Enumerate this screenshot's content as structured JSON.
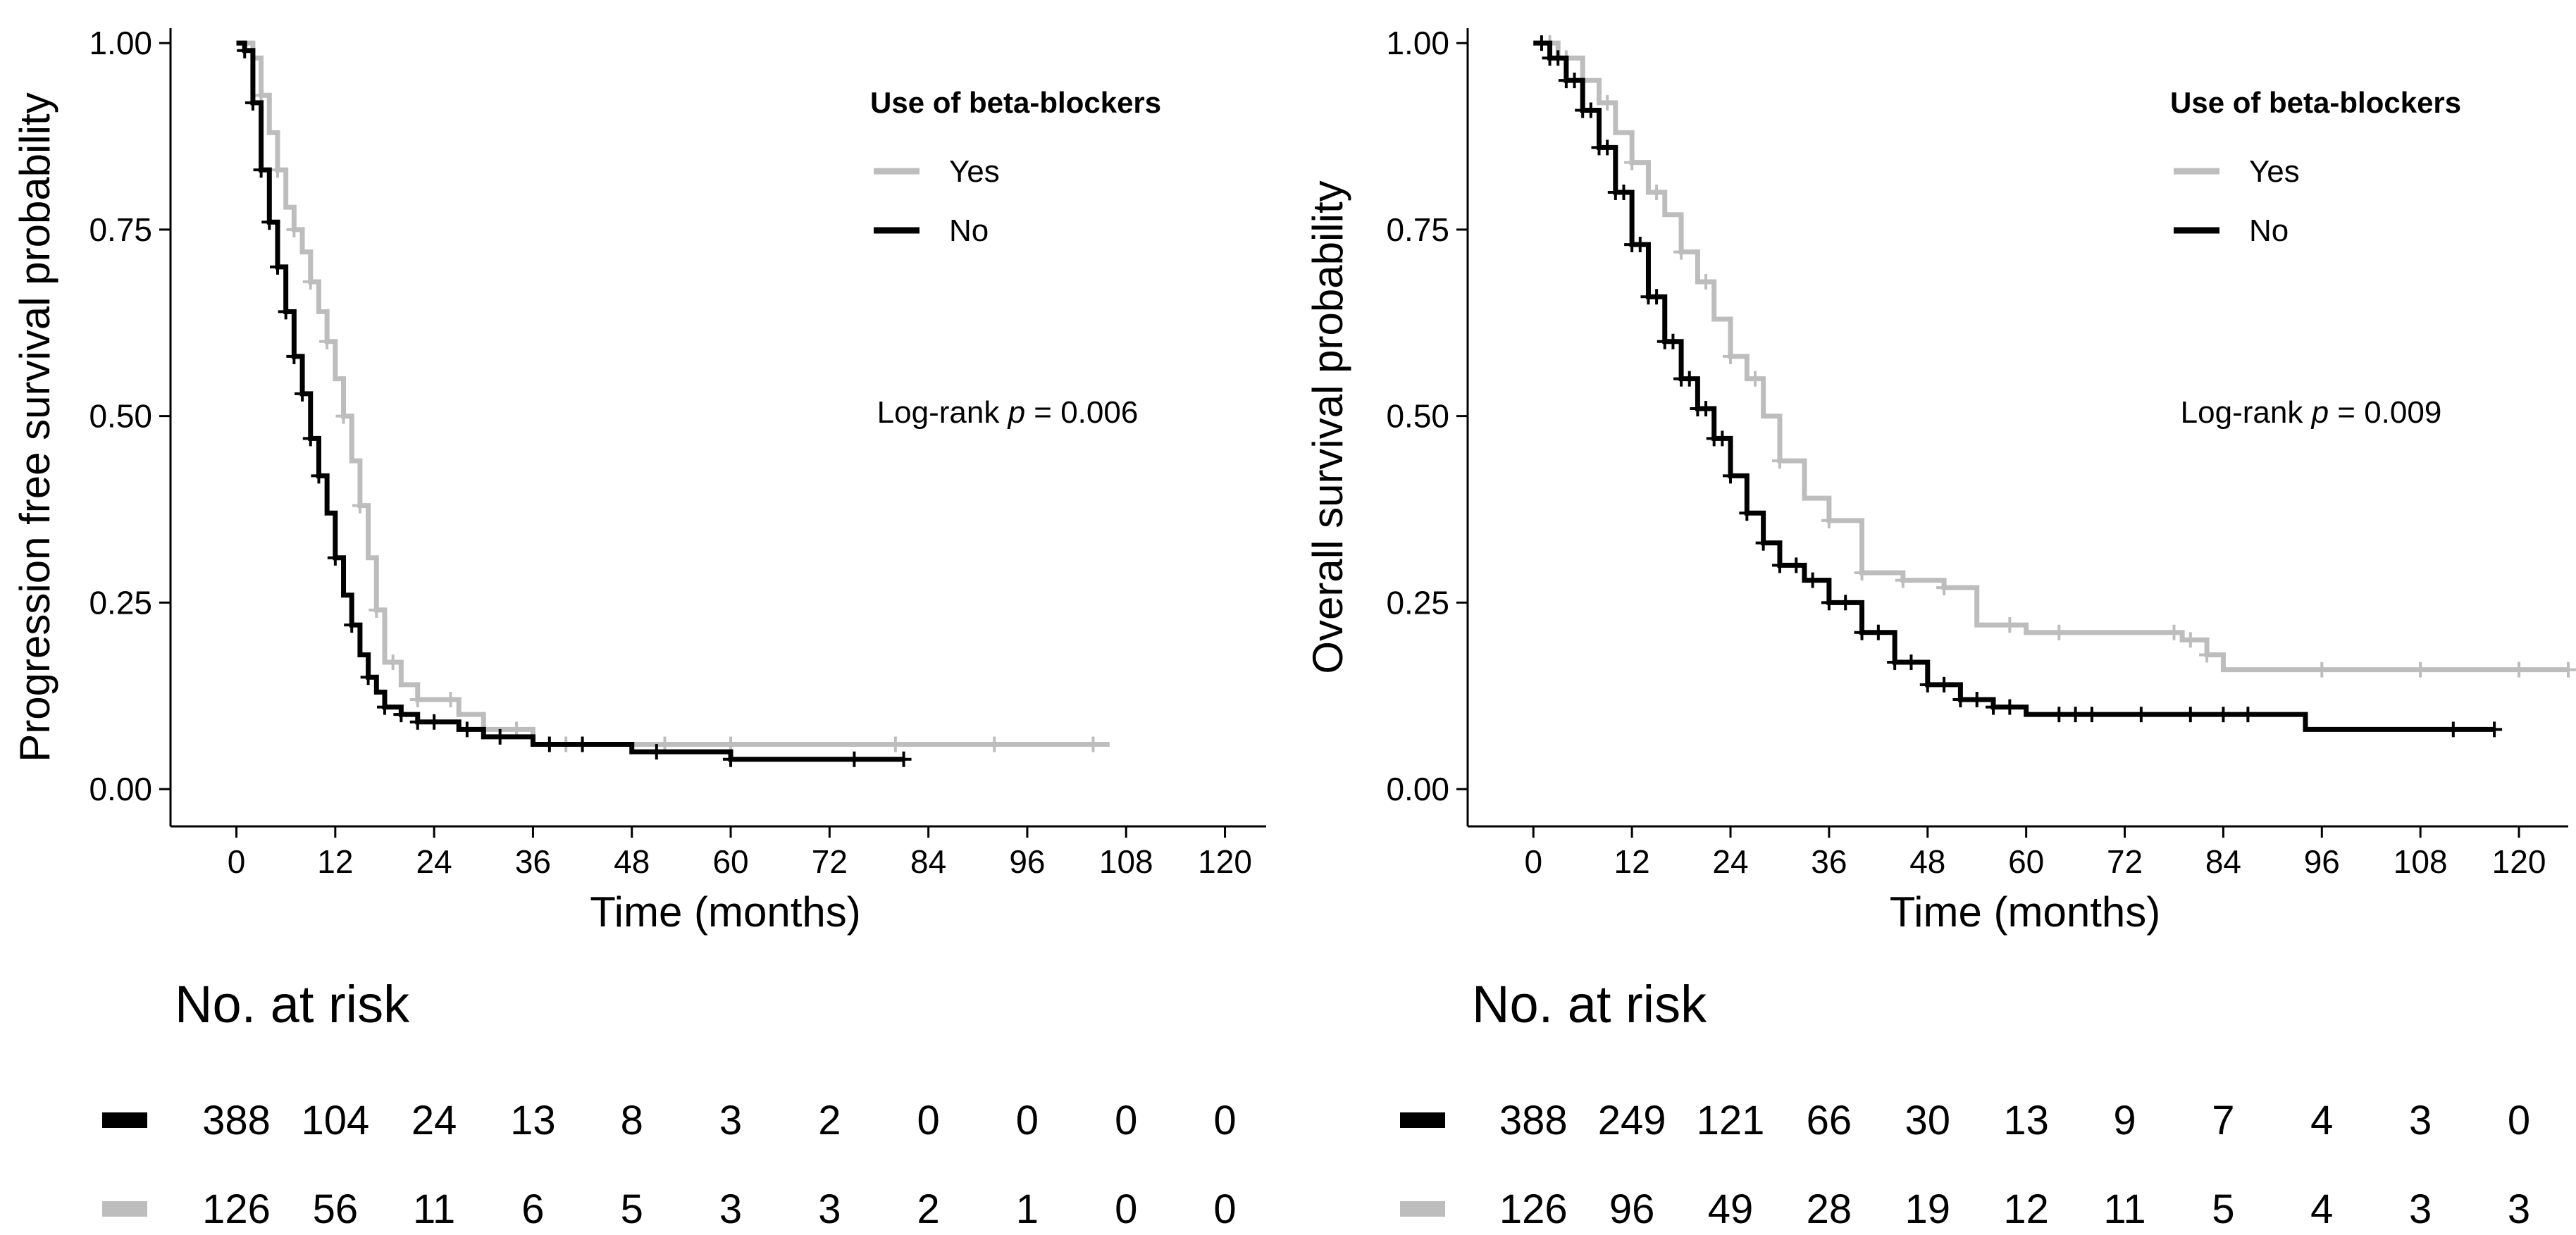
{
  "colors": {
    "yes": "#bdbdbd",
    "no": "#000000",
    "axis": "#000000",
    "background": "#ffffff"
  },
  "chart_data": [
    {
      "type": "line",
      "subtype": "kaplan-meier",
      "xlabel": "Time (months)",
      "ylabel": "Progression free survival probability",
      "xlim": [
        -8,
        125
      ],
      "ylim": [
        -0.05,
        1.02
      ],
      "xticks": [
        0,
        12,
        24,
        36,
        48,
        60,
        72,
        84,
        96,
        108,
        120
      ],
      "yticks": [
        0.0,
        0.25,
        0.5,
        0.75,
        1.0
      ],
      "ytick_labels": [
        "0.00",
        "0.25",
        "0.50",
        "0.75",
        "1.00"
      ],
      "legend": {
        "title": "Use of beta-blockers",
        "entries": [
          "Yes",
          "No"
        ],
        "position": "top-right"
      },
      "annotation": {
        "prefix": "Log-rank ",
        "italic": "p",
        "suffix": " = 0.006"
      },
      "series": [
        {
          "name": "Yes",
          "color": "#bdbdbd",
          "x": [
            0,
            2,
            3,
            4,
            5,
            6,
            7,
            8,
            9,
            10,
            11,
            12,
            13,
            14,
            15,
            16,
            17,
            18,
            20,
            22,
            24,
            27,
            30,
            36,
            48,
            60,
            72,
            84,
            96,
            106
          ],
          "y": [
            1.0,
            0.98,
            0.93,
            0.88,
            0.83,
            0.78,
            0.75,
            0.72,
            0.68,
            0.64,
            0.6,
            0.55,
            0.5,
            0.44,
            0.38,
            0.31,
            0.24,
            0.17,
            0.14,
            0.12,
            0.12,
            0.1,
            0.08,
            0.06,
            0.06,
            0.06,
            0.06,
            0.06,
            0.06,
            0.06
          ],
          "censor_x": [
            3,
            5,
            7,
            9,
            11,
            13,
            15,
            17,
            19,
            22,
            26,
            34,
            40,
            52,
            60,
            80,
            92,
            104
          ]
        },
        {
          "name": "No",
          "color": "#000000",
          "x": [
            0,
            1,
            2,
            3,
            4,
            5,
            6,
            7,
            8,
            9,
            10,
            11,
            12,
            13,
            14,
            15,
            16,
            17,
            18,
            20,
            22,
            24,
            27,
            30,
            36,
            42,
            48,
            60,
            70,
            81
          ],
          "y": [
            1.0,
            0.99,
            0.92,
            0.83,
            0.76,
            0.7,
            0.64,
            0.58,
            0.53,
            0.47,
            0.42,
            0.37,
            0.31,
            0.26,
            0.22,
            0.18,
            0.15,
            0.13,
            0.11,
            0.1,
            0.09,
            0.09,
            0.08,
            0.07,
            0.06,
            0.06,
            0.05,
            0.04,
            0.04,
            0.04
          ],
          "censor_x": [
            1,
            2,
            3,
            4,
            5,
            6,
            7,
            8,
            9,
            10,
            12,
            14,
            16,
            18,
            20,
            22,
            24,
            28,
            32,
            38,
            42,
            51,
            60,
            75,
            81
          ]
        }
      ],
      "risk_table": {
        "title": "No. at risk",
        "times": [
          0,
          12,
          24,
          36,
          48,
          60,
          72,
          84,
          96,
          108,
          120
        ],
        "rows": [
          {
            "group": "No",
            "color": "#000000",
            "values": [
              388,
              104,
              24,
              13,
              8,
              3,
              2,
              0,
              0,
              0,
              0
            ]
          },
          {
            "group": "Yes",
            "color": "#bdbdbd",
            "values": [
              126,
              56,
              11,
              6,
              5,
              3,
              3,
              2,
              1,
              0,
              0
            ]
          }
        ]
      }
    },
    {
      "type": "line",
      "subtype": "kaplan-meier",
      "xlabel": "Time (months)",
      "ylabel": "Overall survival probability",
      "xlim": [
        -8,
        126
      ],
      "ylim": [
        -0.05,
        1.02
      ],
      "xticks": [
        0,
        12,
        24,
        36,
        48,
        60,
        72,
        84,
        96,
        108,
        120
      ],
      "yticks": [
        0.0,
        0.25,
        0.5,
        0.75,
        1.0
      ],
      "ytick_labels": [
        "0.00",
        "0.25",
        "0.50",
        "0.75",
        "1.00"
      ],
      "legend": {
        "title": "Use of beta-blockers",
        "entries": [
          "Yes",
          "No"
        ],
        "position": "top-right"
      },
      "annotation": {
        "prefix": "Log-rank ",
        "italic": "p",
        "suffix": " = 0.009"
      },
      "series": [
        {
          "name": "Yes",
          "color": "#bdbdbd",
          "x": [
            0,
            3,
            6,
            8,
            10,
            12,
            14,
            16,
            18,
            20,
            22,
            24,
            26,
            28,
            30,
            33,
            36,
            40,
            45,
            50,
            54,
            60,
            72,
            79,
            82,
            84,
            96,
            108,
            120,
            126
          ],
          "y": [
            1.0,
            0.98,
            0.95,
            0.92,
            0.88,
            0.84,
            0.8,
            0.77,
            0.72,
            0.68,
            0.63,
            0.58,
            0.55,
            0.5,
            0.44,
            0.39,
            0.36,
            0.29,
            0.28,
            0.27,
            0.22,
            0.21,
            0.21,
            0.2,
            0.18,
            0.16,
            0.16,
            0.16,
            0.16,
            0.16
          ],
          "censor_x": [
            2,
            4,
            6,
            9,
            12,
            15,
            18,
            21,
            24,
            27,
            30,
            36,
            40,
            45,
            50,
            58,
            64,
            78,
            80,
            82,
            96,
            108,
            120,
            126
          ]
        },
        {
          "name": "No",
          "color": "#000000",
          "x": [
            0,
            2,
            4,
            6,
            8,
            10,
            12,
            14,
            16,
            18,
            20,
            22,
            24,
            26,
            28,
            30,
            33,
            36,
            40,
            44,
            48,
            52,
            56,
            60,
            72,
            84,
            93,
            94,
            117
          ],
          "y": [
            1.0,
            0.98,
            0.95,
            0.91,
            0.86,
            0.8,
            0.73,
            0.66,
            0.6,
            0.55,
            0.51,
            0.47,
            0.42,
            0.37,
            0.33,
            0.3,
            0.28,
            0.25,
            0.21,
            0.17,
            0.14,
            0.12,
            0.11,
            0.1,
            0.1,
            0.1,
            0.1,
            0.08,
            0.08
          ],
          "censor_x": [
            1,
            2,
            3,
            4,
            5,
            6,
            7,
            8,
            9,
            10,
            11,
            12,
            13,
            14,
            15,
            16,
            17,
            18,
            19,
            20,
            21,
            22,
            23,
            24,
            26,
            28,
            30,
            32,
            34,
            36,
            38,
            40,
            42,
            44,
            46,
            48,
            50,
            52,
            54,
            56,
            58,
            64,
            66,
            68,
            74,
            80,
            84,
            87,
            112,
            117
          ]
        }
      ],
      "risk_table": {
        "title": "No. at risk",
        "times": [
          0,
          12,
          24,
          36,
          48,
          60,
          72,
          84,
          96,
          108,
          120
        ],
        "rows": [
          {
            "group": "No",
            "color": "#000000",
            "values": [
              388,
              249,
              121,
              66,
              30,
              13,
              9,
              7,
              4,
              3,
              0
            ]
          },
          {
            "group": "Yes",
            "color": "#bdbdbd",
            "values": [
              126,
              96,
              49,
              28,
              19,
              12,
              11,
              5,
              4,
              3,
              3
            ]
          }
        ]
      }
    }
  ]
}
